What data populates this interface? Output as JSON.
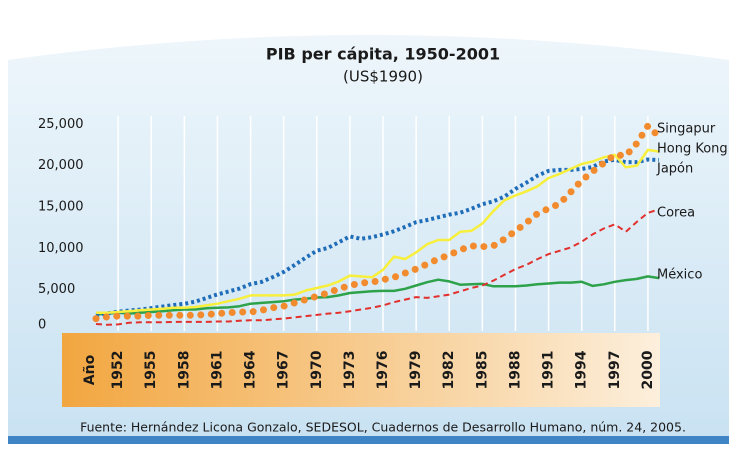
{
  "chart_data": {
    "type": "line",
    "title": "PIB per cápita, 1950-2001",
    "subtitle": "(US$1990)",
    "x_label": "Año",
    "source": "Fuente: Hernández Licona Gonzalo, SEDESOL, Cuadernos de Desarrollo Humano, núm. 24, 2005.",
    "x": [
      1950,
      1951,
      1952,
      1953,
      1954,
      1955,
      1956,
      1957,
      1958,
      1959,
      1960,
      1961,
      1962,
      1963,
      1964,
      1965,
      1966,
      1967,
      1968,
      1969,
      1970,
      1971,
      1972,
      1973,
      1974,
      1975,
      1976,
      1977,
      1978,
      1979,
      1980,
      1981,
      1982,
      1983,
      1984,
      1985,
      1986,
      1987,
      1988,
      1989,
      1990,
      1991,
      1992,
      1993,
      1994,
      1995,
      1996,
      1997,
      1998,
      1999,
      2000,
      2001
    ],
    "xlim": [
      1949,
      2002
    ],
    "xticks": [
      1952,
      1955,
      1958,
      1961,
      1964,
      1967,
      1970,
      1973,
      1976,
      1979,
      1982,
      1985,
      1988,
      1991,
      1994,
      1997,
      2000
    ],
    "ylim": [
      0,
      26000
    ],
    "yticks": [
      0,
      {
        "value": 5000,
        "label": "5,000"
      },
      {
        "value": 10000,
        "label": "10,000"
      },
      {
        "value": 15000,
        "label": "15,000"
      },
      {
        "value": 20000,
        "label": "20,000"
      },
      {
        "value": 25000,
        "label": "25,000"
      }
    ],
    "grid": true,
    "series": [
      {
        "name": "Singapur",
        "color": "#f28a2e",
        "line_style": "dots",
        "values": [
          1500,
          1700,
          1800,
          1800,
          1800,
          1900,
          1900,
          1900,
          1900,
          1900,
          2000,
          2100,
          2200,
          2300,
          2300,
          2500,
          2800,
          3000,
          3400,
          3800,
          4200,
          4600,
          5100,
          5500,
          5800,
          5900,
          6200,
          6500,
          7000,
          7500,
          8100,
          8700,
          9200,
          9800,
          10300,
          10200,
          10300,
          11100,
          12100,
          13100,
          14200,
          14800,
          15400,
          16800,
          18200,
          19300,
          20300,
          21300,
          21200,
          22700,
          24800,
          23500
        ]
      },
      {
        "name": "Hong Kong",
        "color": "#f7ef3c",
        "line_style": "solid",
        "values": [
          2200,
          2200,
          2300,
          2400,
          2500,
          2600,
          2700,
          2800,
          2800,
          2900,
          3100,
          3300,
          3600,
          3900,
          4300,
          4300,
          4300,
          4300,
          4400,
          4900,
          5200,
          5500,
          6000,
          6700,
          6600,
          6500,
          7400,
          9000,
          8700,
          9500,
          10500,
          11000,
          11000,
          12000,
          12100,
          13000,
          14500,
          15800,
          16400,
          16900,
          17500,
          18500,
          19000,
          19600,
          20200,
          20500,
          21000,
          21300,
          19800,
          20000,
          21900,
          21700
        ]
      },
      {
        "name": "Japón",
        "color": "#1f6db8",
        "line_style": "dotted",
        "values": [
          1921,
          2126,
          2336,
          2474,
          2582,
          2771,
          2948,
          3136,
          3289,
          3554,
          3986,
          4426,
          4777,
          5129,
          5668,
          5934,
          6506,
          7152,
          7983,
          8874,
          9714,
          10040,
          10734,
          11434,
          11145,
          11344,
          11669,
          12064,
          12585,
          13163,
          13428,
          13754,
          14078,
          14307,
          14773,
          15331,
          15679,
          16251,
          17185,
          17943,
          18789,
          19355,
          19482,
          19478,
          19591,
          19849,
          20494,
          20703,
          20410,
          20431,
          20738,
          20683
        ]
      },
      {
        "name": "Corea",
        "color": "#e2302d",
        "line_style": "dashed",
        "values": [
          850,
          750,
          800,
          1000,
          1050,
          1050,
          1050,
          1100,
          1100,
          1100,
          1100,
          1150,
          1150,
          1250,
          1300,
          1300,
          1400,
          1500,
          1650,
          1800,
          1950,
          2100,
          2200,
          2400,
          2600,
          2800,
          3100,
          3500,
          3800,
          4100,
          4000,
          4200,
          4400,
          4800,
          5200,
          5500,
          6100,
          6800,
          7500,
          8000,
          8700,
          9300,
          9700,
          10100,
          10800,
          11700,
          12400,
          12900,
          12000,
          13200,
          14300,
          14700
        ]
      },
      {
        "name": "México",
        "color": "#2ea24a",
        "line_style": "solid",
        "values": [
          2000,
          2100,
          2200,
          2100,
          2200,
          2300,
          2400,
          2500,
          2600,
          2600,
          2750,
          2800,
          2850,
          3000,
          3300,
          3400,
          3500,
          3600,
          3800,
          3900,
          4050,
          4100,
          4300,
          4600,
          4700,
          4800,
          4850,
          4850,
          5100,
          5500,
          5900,
          6200,
          6000,
          5600,
          5650,
          5700,
          5400,
          5400,
          5400,
          5500,
          5650,
          5750,
          5850,
          5850,
          5950,
          5450,
          5650,
          5950,
          6150,
          6300,
          6600,
          6400
        ]
      }
    ]
  }
}
